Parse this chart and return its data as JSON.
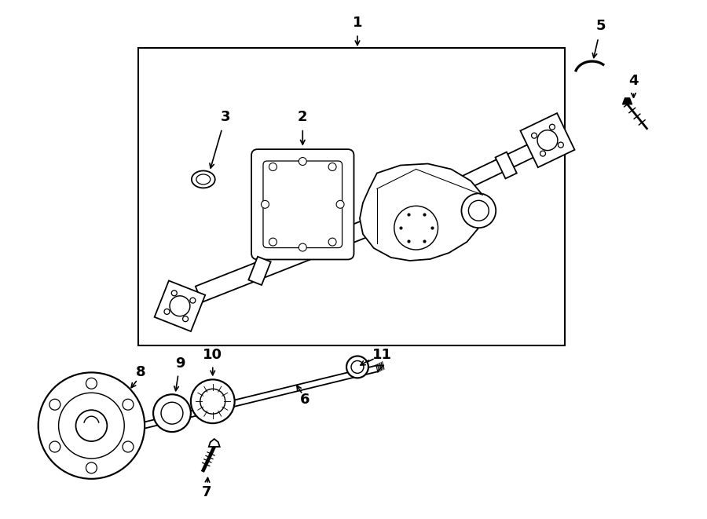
{
  "bg_color": "#ffffff",
  "line_color": "#000000",
  "fig_width": 9.0,
  "fig_height": 6.61,
  "dpi": 100,
  "part_lw": 1.3,
  "arrow_lw": 1.2,
  "label_fontsize": 13
}
